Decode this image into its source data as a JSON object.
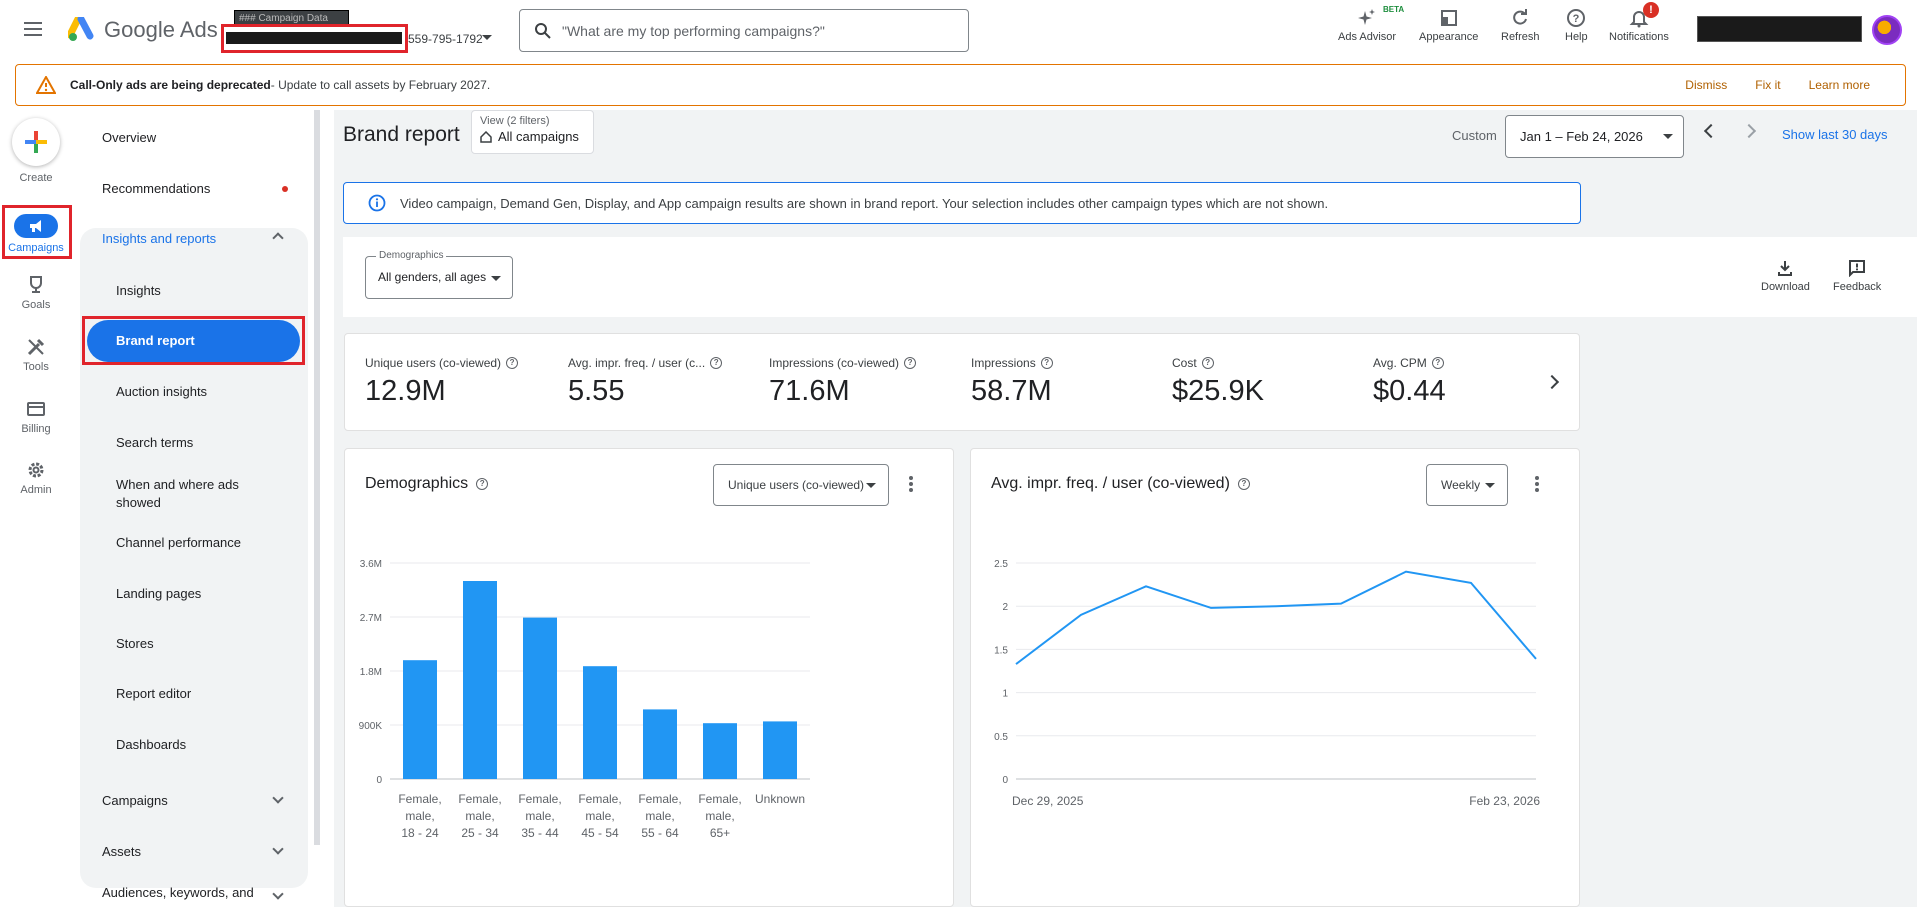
{
  "topbar": {
    "app_name": "Google Ads",
    "account_label": "### Campaign Data",
    "account_id": "559-795-1792",
    "search_placeholder": "\"What are my top performing campaigns?\"",
    "beta": "BETA",
    "ads_advisor": "Ads Advisor",
    "appearance": "Appearance",
    "refresh": "Refresh",
    "help": "Help",
    "notifications": "Notifications",
    "notif_badge": "!"
  },
  "banner": {
    "bold": "Call-Only ads are being deprecated",
    "text": " - Update to call assets by February 2027.",
    "dismiss": "Dismiss",
    "fix": "Fix it",
    "learn": "Learn more"
  },
  "rail": {
    "create": "Create",
    "campaigns": "Campaigns",
    "goals": "Goals",
    "tools": "Tools",
    "billing": "Billing",
    "admin": "Admin"
  },
  "sidebar": {
    "overview": "Overview",
    "recommendations": "Recommendations",
    "insights_reports": "Insights and reports",
    "sub": [
      "Insights",
      "Brand report",
      "Auction insights",
      "Search terms",
      "When and where ads showed",
      "Channel performance",
      "Landing pages",
      "Stores",
      "Report editor",
      "Dashboards"
    ],
    "campaigns": "Campaigns",
    "assets": "Assets",
    "audiences": "Audiences, keywords, and"
  },
  "header": {
    "title": "Brand report",
    "view_label": "View (2 filters)",
    "view_value": "All campaigns",
    "custom": "Custom",
    "date_range": "Jan 1 – Feb 24, 2026",
    "show_last": "Show last 30 days"
  },
  "info": "Video campaign, Demand Gen, Display, and App campaign results are shown in brand report. Your selection includes other campaign types which are not shown.",
  "filter": {
    "label": "Demographics",
    "value": "All genders, all ages",
    "download": "Download",
    "feedback": "Feedback"
  },
  "metrics": [
    {
      "label": "Unique users (co-viewed)",
      "value": "12.9M"
    },
    {
      "label": "Avg. impr. freq. / user (c...",
      "value": "5.55"
    },
    {
      "label": "Impressions (co-viewed)",
      "value": "71.6M"
    },
    {
      "label": "Impressions",
      "value": "58.7M"
    },
    {
      "label": "Cost",
      "value": "$25.9K"
    },
    {
      "label": "Avg. CPM",
      "value": "$0.44"
    }
  ],
  "demographics_card": {
    "title": "Demographics",
    "dropdown": "Unique users (co-viewed)"
  },
  "freq_card": {
    "title": "Avg. impr. freq. / user (co-viewed)",
    "dropdown": "Weekly"
  },
  "chart_data": [
    {
      "type": "bar",
      "categories": [
        [
          "Female,",
          "male,",
          "18 - 24"
        ],
        [
          "Female,",
          "male,",
          "25 - 34"
        ],
        [
          "Female,",
          "male,",
          "35 - 44"
        ],
        [
          "Female,",
          "male,",
          "45 - 54"
        ],
        [
          "Female,",
          "male,",
          "55 - 64"
        ],
        [
          "Female,",
          "male,",
          "65+"
        ],
        [
          "Unknown"
        ]
      ],
      "values": [
        1980000,
        3300000,
        2690000,
        1880000,
        1160000,
        930000,
        960000
      ],
      "ylim": [
        0,
        3600000
      ],
      "yticks": [
        "0",
        "900K",
        "1.8M",
        "2.7M",
        "3.6M"
      ],
      "grid": true,
      "color": "#2196f3"
    },
    {
      "type": "line",
      "x_start": "Dec 29, 2025",
      "x_end": "Feb 23, 2026",
      "values": [
        1.33,
        1.9,
        2.23,
        1.98,
        2.0,
        2.03,
        2.4,
        2.27,
        1.39
      ],
      "ylim": [
        0,
        2.5
      ],
      "yticks": [
        "0",
        "0.5",
        "1",
        "1.5",
        "2",
        "2.5"
      ],
      "grid": true,
      "color": "#2196f3"
    }
  ]
}
